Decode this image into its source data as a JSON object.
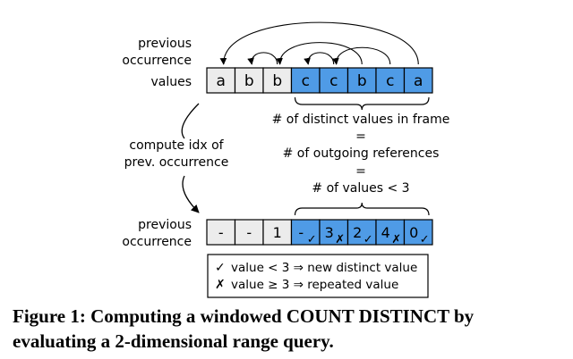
{
  "labels": {
    "previous_occurrence_top": [
      "previous",
      "occurrence"
    ],
    "values": "values",
    "compute": [
      "compute idx of",
      "prev. occurrence"
    ],
    "previous_occurrence_bottom": [
      "previous",
      "occurrence"
    ]
  },
  "values_row": [
    "a",
    "b",
    "b",
    "c",
    "c",
    "b",
    "c",
    "a"
  ],
  "prev_row": [
    {
      "text": "-",
      "mark": ""
    },
    {
      "text": "-",
      "mark": ""
    },
    {
      "text": "1",
      "mark": ""
    },
    {
      "text": "-",
      "mark": "check"
    },
    {
      "text": "3",
      "mark": "cross"
    },
    {
      "text": "2",
      "mark": "check"
    },
    {
      "text": "4",
      "mark": "cross"
    },
    {
      "text": "0",
      "mark": "check"
    }
  ],
  "frame": {
    "start_index": 3,
    "end_index": 7
  },
  "explanation": [
    "# of distinct values in frame",
    "=",
    "# of outgoing references",
    "=",
    "# of values < 3"
  ],
  "legend": [
    {
      "symbol": "✓",
      "text": "value < 3 ⇒ new distinct value"
    },
    {
      "symbol": "✗",
      "text": "value ≥ 3 ⇒ repeated value"
    }
  ],
  "caption": "Figure 1: Computing a windowed COUNT DISTINCT by evaluating a 2-dimensional range query.",
  "colors": {
    "frame_fill": "#4f9be6",
    "cell_fill": "#ececec",
    "stroke": "#000000"
  }
}
